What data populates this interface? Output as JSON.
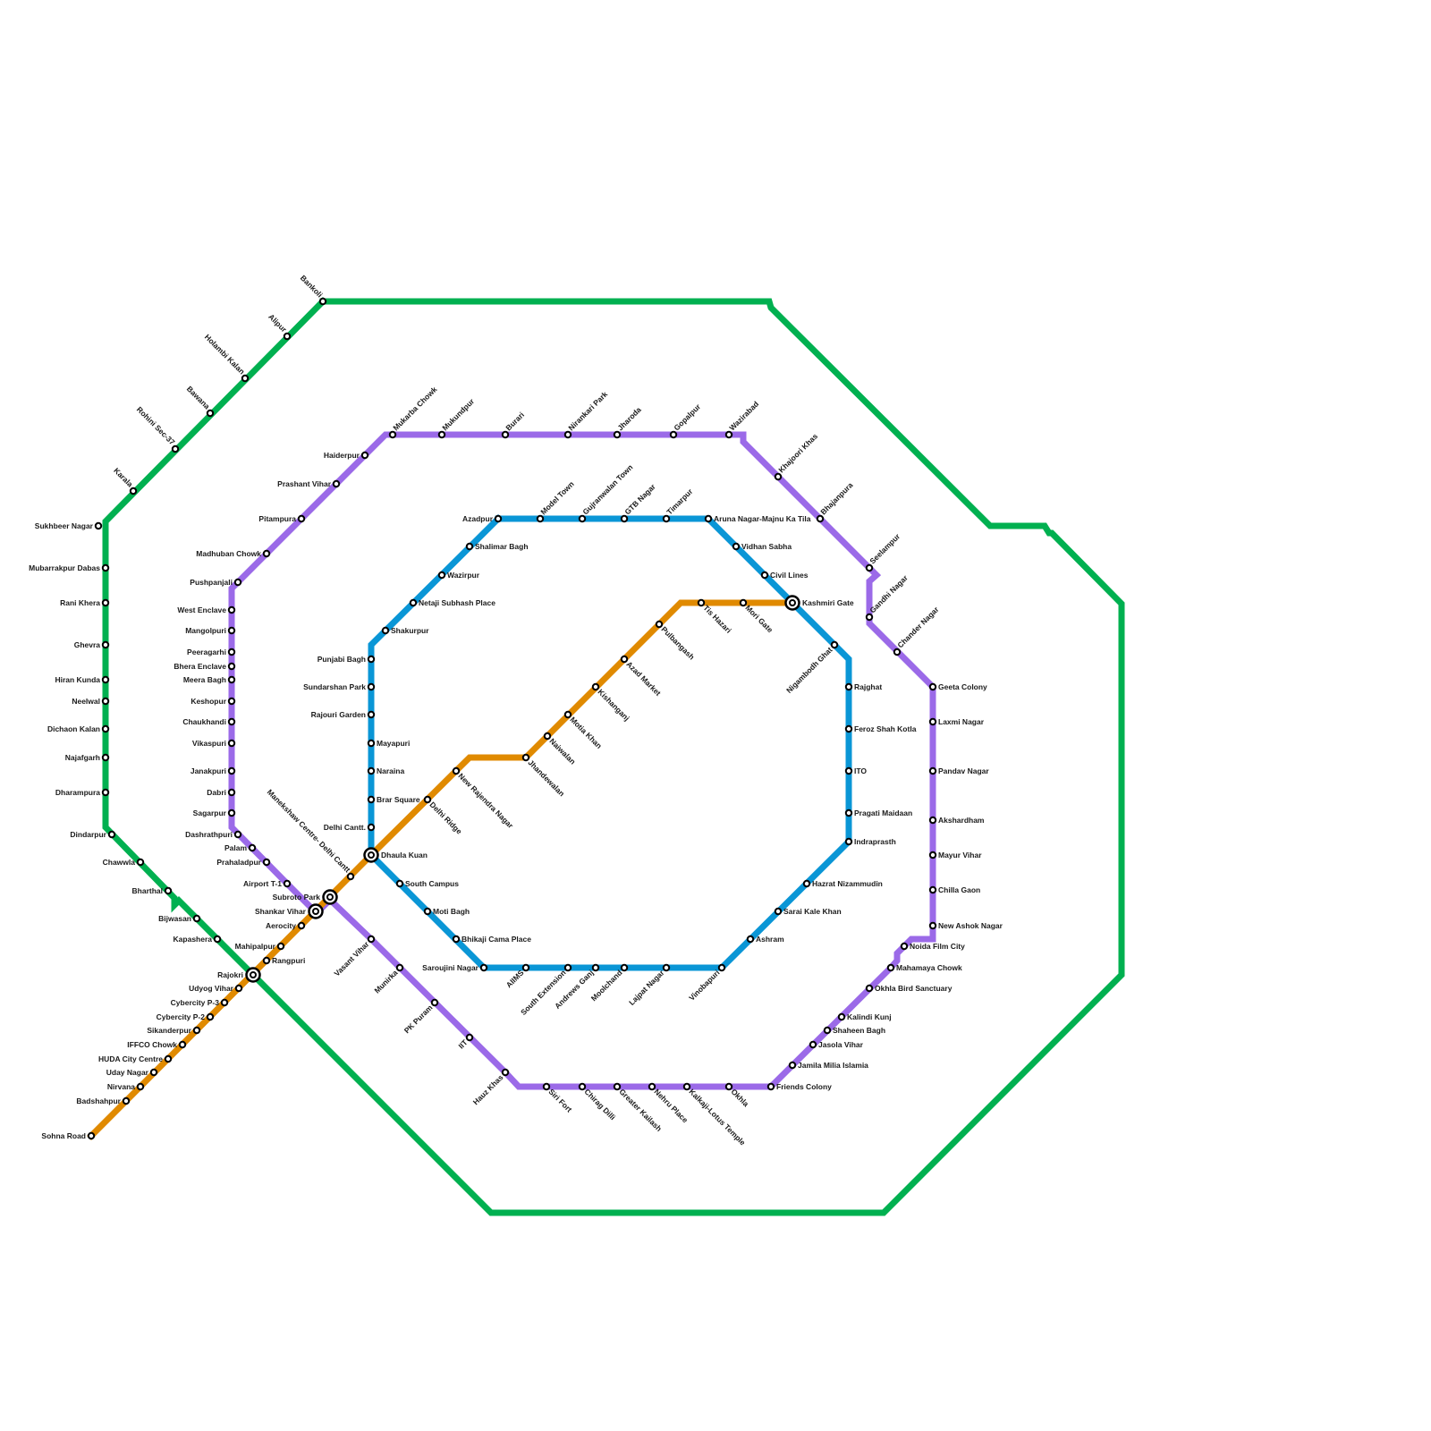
{
  "lines": [
    {
      "id": "green",
      "color": "#00b050",
      "stations": [
        "Bankoli",
        "Alipur",
        "Holambi Kalan",
        "Bawana",
        "Rohini Sec-37",
        "Karala",
        "Sukhbeer Nagar",
        "Mubarrakpur Dabas",
        "Rani Khera",
        "Ghevra",
        "Hiran Kunda",
        "Neelwal",
        "Dichaon Kalan",
        "Najafgarh",
        "Dharampura",
        "Dindarpur",
        "Chawwla",
        "Bharthal",
        "Bijwasan",
        "Kapashera"
      ]
    },
    {
      "id": "purple",
      "color": "#9b6ae8",
      "stations": [
        "Haiderpur",
        "Prashant Vihar",
        "Pitampura",
        "Madhuban Chowk",
        "Pushpanjali",
        "West Enclave",
        "Mangolpuri",
        "Peeragarhi",
        "Bhera Enclave",
        "Meera Bagh",
        "Keshopur",
        "Chaukhandi",
        "Vikaspuri",
        "Janakpuri",
        "Dabri",
        "Sagarpur",
        "Dashrathpuri",
        "Palam",
        "Prahaladpur",
        "Airport T-1",
        "Vasant Vihar",
        "Munirka",
        "PK Puram",
        "IIT",
        "Hauz Khas",
        "Siri Fort",
        "Chirag Dilli",
        "Greater Kailash",
        "Nehru Place",
        "Kalkaji-Lotus Temple",
        "Okhla",
        "Friends Colony",
        "Jamila Milia Islamia",
        "Jasola Vihar",
        "Shaheen Bagh",
        "Kalindi Kunj",
        "Okhla Bird Sanctuary",
        "Mahamaya Chowk",
        "Noida Film City",
        "New Ashok Nagar",
        "Chilla Gaon",
        "Mayur Vihar",
        "Akshardham",
        "Pandav Nagar",
        "Laxmi Nagar",
        "Geeta Colony",
        "Chander Nagar",
        "Gandhi Nagar",
        "Seelampur",
        "Bhajanpura",
        "Khajoori Khas",
        "Wazirabad",
        "Gopalpur",
        "Jharoda",
        "Nirankari Park",
        "Burari",
        "Mukundpur",
        "Mukarba Chowk"
      ]
    },
    {
      "id": "blue",
      "color": "#0a96d6",
      "stations": [
        "Azadpur",
        "Model Town",
        "Gujranwalan Town",
        "GTB Nagar",
        "Timarpur",
        "Aruna Nagar-Majnu Ka Tila",
        "Vidhan Sabha",
        "Civil Lines",
        "Nigambodh Ghat",
        "Rajghat",
        "Feroz Shah Kotla",
        "ITO",
        "Pragati Maidaan",
        "Indraprasth",
        "Hazrat Nizammudin",
        "Sarai Kale Khan",
        "Ashram",
        "Vinobapuri",
        "Lajpat Nagar",
        "Moolchand",
        "Andrews Ganj",
        "South Extension",
        "AIIMS",
        "Saroujini Nagar",
        "Bhikaji Cama Place",
        "Moti Bagh",
        "South Campus",
        "Delhi Cantt.",
        "Brar Square",
        "Naraina",
        "Mayapuri",
        "Rajouri Garden",
        "Sundarshan Park",
        "Punjabi Bagh",
        "Shakurpur",
        "Netaji Subhash Place",
        "Wazirpur",
        "Shalimar Bagh"
      ]
    },
    {
      "id": "orange",
      "color": "#e08a00",
      "stations": [
        "Sohna Road",
        "Badshahpur",
        "Nirvana",
        "Uday Nagar",
        "HUDA City Centre",
        "IFFCO Chowk",
        "Sikanderpur",
        "Cybercity P-2",
        "Cybercity P-3",
        "Udyog Vihar",
        "Rangpuri",
        "Mahipalpur",
        "Aerocity",
        "Manekshaw Centre- Delhi Cantt",
        "Delhi Ridge",
        "New Rajendra Nagar",
        "Jhandewalan",
        "Naiwalan",
        "Motia Khan",
        "Kishanganj",
        "Azad Market",
        "Pulbangash",
        "Tis Hazari",
        "Mori Gate"
      ]
    }
  ],
  "interchanges": [
    "Rajokri",
    "Shankar Vihar",
    "Subroto Park",
    "Dhaula Kuan",
    "Kashmiri Gate"
  ]
}
